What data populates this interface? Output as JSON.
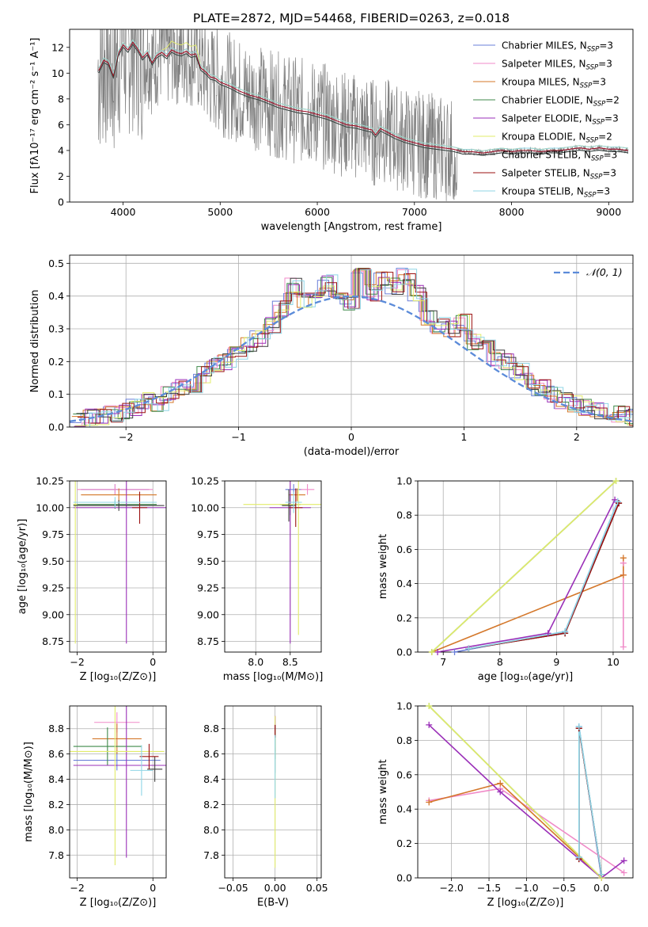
{
  "figure": {
    "title": "PLATE=2872, MJD=54468, FIBERID=0263, z=0.018"
  },
  "series_colors": {
    "Chabrier MILES": "#6a7fd8",
    "Salpeter MILES": "#f08ac8",
    "Kroupa MILES": "#d4772a",
    "Chabrier ELODIE": "#3f8a4a",
    "Salpeter ELODIE": "#9a2fb8",
    "Kroupa ELODIE": "#e2ec6a",
    "Chabrier STELIB": "#3e3e3e",
    "Salpeter STELIB": "#9b1111",
    "Kroupa STELIB": "#8fd6e6",
    "observed": "#808080",
    "normal": "#5b8bd9"
  },
  "chart_data": [
    {
      "id": "spectrum",
      "type": "line",
      "xlabel": "wavelength [Angstrom, rest frame]",
      "ylabel": "Flux [fλ10⁻¹⁷ erg cm⁻² s⁻¹ A⁻¹]",
      "xlim": [
        3450,
        9250
      ],
      "ylim": [
        0,
        13.4
      ],
      "xticks": [
        4000,
        5000,
        6000,
        7000,
        8000,
        9000
      ],
      "yticks": [
        0,
        2,
        4,
        6,
        8,
        10,
        12
      ],
      "legend": "top-right",
      "legend_entries": [
        {
          "series": "Chabrier MILES",
          "label": "Chabrier MILES, N",
          "sub": "SSP",
          "suffix": "=3"
        },
        {
          "series": "Salpeter MILES",
          "label": "Salpeter MILES, N",
          "sub": "SSP",
          "suffix": "=3"
        },
        {
          "series": "Kroupa MILES",
          "label": "Kroupa MILES, N",
          "sub": "SSP",
          "suffix": "=3"
        },
        {
          "series": "Chabrier ELODIE",
          "label": "Chabrier ELODIE, N",
          "sub": "SSP",
          "suffix": "=2"
        },
        {
          "series": "Salpeter ELODIE",
          "label": "Salpeter ELODIE, N",
          "sub": "SSP",
          "suffix": "=3"
        },
        {
          "series": "Kroupa ELODIE",
          "label": "Kroupa ELODIE, N",
          "sub": "SSP",
          "suffix": "=2"
        },
        {
          "series": "Chabrier STELIB",
          "label": "Chabrier STELIB, N",
          "sub": "SSP",
          "suffix": "=3"
        },
        {
          "series": "Salpeter STELIB",
          "label": "Salpeter STELIB, N",
          "sub": "SSP",
          "suffix": "=3"
        },
        {
          "series": "Kroupa STELIB",
          "label": "Kroupa STELIB, N",
          "sub": "SSP",
          "suffix": "=3"
        }
      ],
      "model_x": [
        3750,
        3800,
        3850,
        3900,
        3950,
        4000,
        4050,
        4100,
        4150,
        4200,
        4250,
        4300,
        4350,
        4400,
        4450,
        4500,
        4550,
        4600,
        4650,
        4700,
        4750,
        4800,
        4850,
        4900,
        4950,
        5000,
        5100,
        5200,
        5300,
        5400,
        5500,
        5600,
        5700,
        5800,
        5900,
        6000,
        6100,
        6200,
        6300,
        6400,
        6500,
        6560,
        6600,
        6650,
        6700,
        6750,
        6800,
        6900,
        7000,
        7100,
        7200,
        7300,
        7400,
        7500,
        7600,
        7700,
        7800,
        7900,
        8000,
        8100,
        8200,
        8300,
        8400,
        8500,
        8600,
        8700,
        8800,
        8900,
        9000,
        9100,
        9200
      ],
      "model_y": [
        10.2,
        11.0,
        10.8,
        9.8,
        11.5,
        12.2,
        11.8,
        12.4,
        11.9,
        11.2,
        11.6,
        10.8,
        11.4,
        11.6,
        11.3,
        11.8,
        11.6,
        11.5,
        11.7,
        11.4,
        11.5,
        10.4,
        10.1,
        9.7,
        9.6,
        9.3,
        9.0,
        8.6,
        8.3,
        8.1,
        7.8,
        7.5,
        7.3,
        7.1,
        7.0,
        6.8,
        6.6,
        6.3,
        6.0,
        5.9,
        5.7,
        5.6,
        5.2,
        5.7,
        5.5,
        5.3,
        5.1,
        4.8,
        4.6,
        4.4,
        4.3,
        4.2,
        4.1,
        3.9,
        3.9,
        3.8,
        3.9,
        4.0,
        3.9,
        4.0,
        4.0,
        3.9,
        4.0,
        4.0,
        4.1,
        4.2,
        4.1,
        4.2,
        4.1,
        4.1,
        4.0
      ]
    },
    {
      "id": "residuals",
      "type": "line",
      "xlabel": "(data-model)/error",
      "ylabel": "Normed distribution",
      "xlim": [
        -2.5,
        2.5
      ],
      "ylim": [
        0,
        0.525
      ],
      "xticks": [
        -2,
        -1,
        0,
        1,
        2
      ],
      "yticks": [
        0.0,
        0.1,
        0.2,
        0.3,
        0.4,
        0.5
      ],
      "grid": true,
      "legend": "top-right",
      "legend_entries": [
        {
          "series": "normal",
          "label": "𝒩(0, 1)"
        }
      ],
      "bins": [
        -2.5,
        -2.4,
        -2.3,
        -2.2,
        -2.1,
        -2.0,
        -1.9,
        -1.8,
        -1.7,
        -1.6,
        -1.5,
        -1.4,
        -1.3,
        -1.2,
        -1.1,
        -1.0,
        -0.9,
        -0.8,
        -0.7,
        -0.6,
        -0.5,
        -0.4,
        -0.3,
        -0.2,
        -0.1,
        0.0,
        0.1,
        0.2,
        0.3,
        0.4,
        0.5,
        0.6,
        0.7,
        0.8,
        0.9,
        1.0,
        1.1,
        1.2,
        1.3,
        1.4,
        1.5,
        1.6,
        1.7,
        1.8,
        1.9,
        2.0,
        2.1,
        2.2,
        2.3,
        2.4
      ],
      "hist": [
        0.02,
        0.03,
        0.03,
        0.04,
        0.05,
        0.06,
        0.08,
        0.07,
        0.1,
        0.12,
        0.13,
        0.16,
        0.19,
        0.2,
        0.22,
        0.25,
        0.27,
        0.31,
        0.36,
        0.43,
        0.39,
        0.42,
        0.44,
        0.4,
        0.38,
        0.46,
        0.41,
        0.45,
        0.43,
        0.46,
        0.41,
        0.33,
        0.31,
        0.3,
        0.32,
        0.26,
        0.25,
        0.21,
        0.2,
        0.17,
        0.14,
        0.12,
        0.1,
        0.08,
        0.07,
        0.06,
        0.05,
        0.04,
        0.04,
        0.03
      ]
    },
    {
      "id": "age-vs-Z",
      "type": "scatter",
      "xlabel": "Z [log₁₀(Z/Z⊙)]",
      "ylabel": "age  [log₁₀(age/yr)]",
      "xlim": [
        -2.2,
        0.35
      ],
      "ylim": [
        8.65,
        10.25
      ],
      "xticks": [
        -2,
        0
      ],
      "yticks": [
        8.75,
        9.0,
        9.25,
        9.5,
        9.75,
        10.0,
        10.25
      ],
      "grid": true,
      "points": [
        {
          "series": "Chabrier MILES",
          "x": -1.0,
          "y": 10.17,
          "xerr": 0.9,
          "yerr": 0.05
        },
        {
          "series": "Salpeter MILES",
          "x": -1.0,
          "y": 10.17,
          "xerr": 1.0,
          "yerr": 0.05
        },
        {
          "series": "Kroupa MILES",
          "x": -0.9,
          "y": 10.12,
          "xerr": 1.0,
          "yerr": 0.06
        },
        {
          "series": "Chabrier ELODIE",
          "x": -1.0,
          "y": 10.03,
          "xerr": 1.1,
          "yerr": 0.04
        },
        {
          "series": "Salpeter ELODIE",
          "x": -0.7,
          "y": 10.0,
          "xerr": 1.4,
          "yerr": 1.27
        },
        {
          "series": "Kroupa ELODIE",
          "x": -2.05,
          "y": 10.03,
          "xerr": 0.05,
          "yerr": 1.3
        },
        {
          "series": "Chabrier STELIB",
          "x": -0.9,
          "y": 10.02,
          "xerr": 1.2,
          "yerr": 0.05
        },
        {
          "series": "Salpeter STELIB",
          "x": -0.35,
          "y": 10.0,
          "xerr": 0.2,
          "yerr": 0.15
        },
        {
          "series": "Kroupa STELIB",
          "x": -1.0,
          "y": 10.05,
          "xerr": 1.1,
          "yerr": 0.05
        }
      ]
    },
    {
      "id": "age-vs-mass",
      "type": "scatter",
      "xlabel": "mass [log₁₀(M/M⊙)]",
      "xlim": [
        7.55,
        8.95
      ],
      "ylim": [
        8.65,
        10.25
      ],
      "xticks": [
        8.0,
        8.5
      ],
      "yticks": [
        8.75,
        9.0,
        9.25,
        9.5,
        9.75,
        10.0,
        10.25
      ],
      "grid": true,
      "points": [
        {
          "series": "Chabrier MILES",
          "x": 8.55,
          "y": 10.17,
          "xerr": 0.12,
          "yerr": 0.05
        },
        {
          "series": "Salpeter MILES",
          "x": 8.75,
          "y": 10.17,
          "xerr": 0.1,
          "yerr": 0.05
        },
        {
          "series": "Kroupa MILES",
          "x": 8.6,
          "y": 10.12,
          "xerr": 0.12,
          "yerr": 0.06
        },
        {
          "series": "Chabrier ELODIE",
          "x": 8.5,
          "y": 10.03,
          "xerr": 0.15,
          "yerr": 0.1
        },
        {
          "series": "Salpeter ELODIE",
          "x": 8.5,
          "y": 10.0,
          "xerr": 0.3,
          "yerr": 1.27
        },
        {
          "series": "Kroupa ELODIE",
          "x": 8.62,
          "y": 10.03,
          "xerr": 0.8,
          "yerr": 1.22
        },
        {
          "series": "Chabrier STELIB",
          "x": 8.48,
          "y": 10.02,
          "xerr": 0.1,
          "yerr": 0.15
        },
        {
          "series": "Salpeter STELIB",
          "x": 8.58,
          "y": 10.0,
          "xerr": 0.1,
          "yerr": 0.18
        },
        {
          "series": "Kroupa STELIB",
          "x": 8.55,
          "y": 10.05,
          "xerr": 0.12,
          "yerr": 0.1
        }
      ]
    },
    {
      "id": "weight-vs-age",
      "type": "line",
      "xlabel": "age  [log₁₀(age/yr)]",
      "ylabel": "mass weight",
      "xlim": [
        6.55,
        10.35
      ],
      "ylim": [
        0,
        1.0
      ],
      "xticks": [
        7,
        8,
        9,
        10
      ],
      "yticks": [
        0.0,
        0.2,
        0.4,
        0.6,
        0.8,
        1.0
      ],
      "grid": true,
      "series": [
        {
          "series": "Chabrier MILES",
          "x": [
            7.2,
            9.15,
            10.08
          ],
          "y": [
            0.0,
            0.12,
            0.88
          ]
        },
        {
          "series": "Salpeter MILES",
          "x": [
            10.18,
            10.18,
            10.18
          ],
          "y": [
            0.03,
            0.52,
            0.45
          ]
        },
        {
          "series": "Kroupa MILES",
          "x": [
            6.8,
            10.18,
            10.18
          ],
          "y": [
            0.0,
            0.45,
            0.55
          ]
        },
        {
          "series": "Chabrier ELODIE",
          "x": [
            6.8,
            10.05
          ],
          "y": [
            0.0,
            1.0
          ]
        },
        {
          "series": "Salpeter ELODIE",
          "x": [
            6.9,
            8.85,
            10.03
          ],
          "y": [
            0.0,
            0.11,
            0.89
          ]
        },
        {
          "series": "Kroupa ELODIE",
          "x": [
            6.8,
            10.05
          ],
          "y": [
            0.0,
            1.0
          ]
        },
        {
          "series": "Chabrier STELIB",
          "x": [
            7.45,
            9.15,
            10.1
          ],
          "y": [
            0.02,
            0.11,
            0.87
          ]
        },
        {
          "series": "Salpeter STELIB",
          "x": [
            7.45,
            9.15,
            10.1
          ],
          "y": [
            0.02,
            0.11,
            0.87
          ]
        },
        {
          "series": "Kroupa STELIB",
          "x": [
            7.45,
            9.15,
            10.08
          ],
          "y": [
            0.02,
            0.12,
            0.88
          ]
        }
      ]
    },
    {
      "id": "mass-vs-Z",
      "type": "scatter",
      "xlabel": "Z [log₁₀(Z/Z⊙)]",
      "ylabel": "mass [log₁₀(M/M⊙)]",
      "xlim": [
        -2.2,
        0.35
      ],
      "ylim": [
        7.62,
        8.98
      ],
      "xticks": [
        -2,
        0
      ],
      "yticks": [
        7.8,
        8.0,
        8.2,
        8.4,
        8.6,
        8.8
      ],
      "grid": true,
      "points": [
        {
          "series": "Chabrier MILES",
          "x": -0.95,
          "y": 8.55,
          "xerr": 1.15,
          "yerr": 0.08
        },
        {
          "series": "Salpeter MILES",
          "x": -0.95,
          "y": 8.85,
          "xerr": 0.6,
          "yerr": 0.08
        },
        {
          "series": "Kroupa MILES",
          "x": -0.95,
          "y": 8.72,
          "xerr": 0.65,
          "yerr": 0.12
        },
        {
          "series": "Chabrier ELODIE",
          "x": -1.2,
          "y": 8.66,
          "xerr": 0.9,
          "yerr": 0.15
        },
        {
          "series": "Salpeter ELODIE",
          "x": -0.7,
          "y": 8.51,
          "xerr": 1.4,
          "yerr": 0.73
        },
        {
          "series": "Kroupa ELODIE",
          "x": -1.0,
          "y": 8.62,
          "xerr": 1.3,
          "yerr": 0.9
        },
        {
          "series": "Chabrier STELIB",
          "x": 0.05,
          "y": 8.48,
          "xerr": 0.2,
          "yerr": 0.1
        },
        {
          "series": "Salpeter STELIB",
          "x": -0.1,
          "y": 8.58,
          "xerr": 0.25,
          "yerr": 0.1
        },
        {
          "series": "Kroupa STELIB",
          "x": -0.3,
          "y": 8.47,
          "xerr": 0.3,
          "yerr": 0.2
        }
      ]
    },
    {
      "id": "mass-vs-EBV",
      "type": "scatter",
      "xlabel": "E(B-V)",
      "xlim": [
        -0.06,
        0.055
      ],
      "ylim": [
        7.62,
        8.98
      ],
      "xticks": [
        -0.05,
        0.0,
        0.05
      ],
      "yticks": [
        7.8,
        8.0,
        8.2,
        8.4,
        8.6,
        8.8
      ],
      "grid": true,
      "points": [
        {
          "series": "Chabrier MILES",
          "x": 0.0,
          "y": 8.55,
          "xerr": 0.0,
          "yerr": 0.1
        },
        {
          "series": "Salpeter MILES",
          "x": 0.0,
          "y": 8.85,
          "xerr": 0.0,
          "yerr": 0.05
        },
        {
          "series": "Kroupa MILES",
          "x": 0.0,
          "y": 8.72,
          "xerr": 0.0,
          "yerr": 0.1
        },
        {
          "series": "Chabrier ELODIE",
          "x": 0.0,
          "y": 8.66,
          "xerr": 0.0,
          "yerr": 0.1
        },
        {
          "series": "Salpeter ELODIE",
          "x": 0.0,
          "y": 8.85,
          "xerr": 0.0,
          "yerr": 0.05
        },
        {
          "series": "Kroupa ELODIE",
          "x": 0.0,
          "y": 8.3,
          "xerr": 0.0,
          "yerr": 0.6
        },
        {
          "series": "Chabrier STELIB",
          "x": 0.0,
          "y": 8.78,
          "xerr": 0.0,
          "yerr": 0.05
        },
        {
          "series": "Salpeter STELIB",
          "x": 0.0,
          "y": 8.78,
          "xerr": 0.0,
          "yerr": 0.05
        },
        {
          "series": "Kroupa STELIB",
          "x": 0.0,
          "y": 8.5,
          "xerr": 0.0,
          "yerr": 0.25
        }
      ]
    },
    {
      "id": "weight-vs-Z",
      "type": "line",
      "xlabel": "Z [log₁₀(Z/Z⊙)]",
      "ylabel": "mass weight",
      "xlim": [
        -2.45,
        0.42
      ],
      "ylim": [
        0,
        1.0
      ],
      "xticks": [
        -2.0,
        -1.5,
        -1.0,
        -0.5,
        0.0
      ],
      "yticks": [
        0.0,
        0.2,
        0.4,
        0.6,
        0.8,
        1.0
      ],
      "grid": true,
      "series": [
        {
          "series": "Chabrier MILES",
          "x": [
            -0.3,
            -0.3,
            0.0
          ],
          "y": [
            0.12,
            0.88,
            0.0
          ]
        },
        {
          "series": "Salpeter MILES",
          "x": [
            -2.3,
            -1.35,
            0.3
          ],
          "y": [
            0.45,
            0.52,
            0.03
          ]
        },
        {
          "series": "Kroupa MILES",
          "x": [
            -2.3,
            -1.35,
            0.0
          ],
          "y": [
            0.44,
            0.55,
            0.0
          ]
        },
        {
          "series": "Chabrier ELODIE",
          "x": [
            -2.3,
            0.0
          ],
          "y": [
            1.0,
            0.0
          ]
        },
        {
          "series": "Salpeter ELODIE",
          "x": [
            -2.3,
            -1.35,
            0.0,
            0.3
          ],
          "y": [
            0.89,
            0.5,
            0.0,
            0.1
          ]
        },
        {
          "series": "Kroupa ELODIE",
          "x": [
            -2.3,
            0.0
          ],
          "y": [
            1.0,
            0.0
          ]
        },
        {
          "series": "Chabrier STELIB",
          "x": [
            -0.3,
            -0.3,
            0.0
          ],
          "y": [
            0.11,
            0.87,
            0.02
          ]
        },
        {
          "series": "Salpeter STELIB",
          "x": [
            -0.3,
            -0.3,
            0.0
          ],
          "y": [
            0.11,
            0.87,
            0.02
          ]
        },
        {
          "series": "Kroupa STELIB",
          "x": [
            -0.3,
            -0.3,
            0.0
          ],
          "y": [
            0.12,
            0.88,
            0.02
          ]
        }
      ]
    }
  ]
}
